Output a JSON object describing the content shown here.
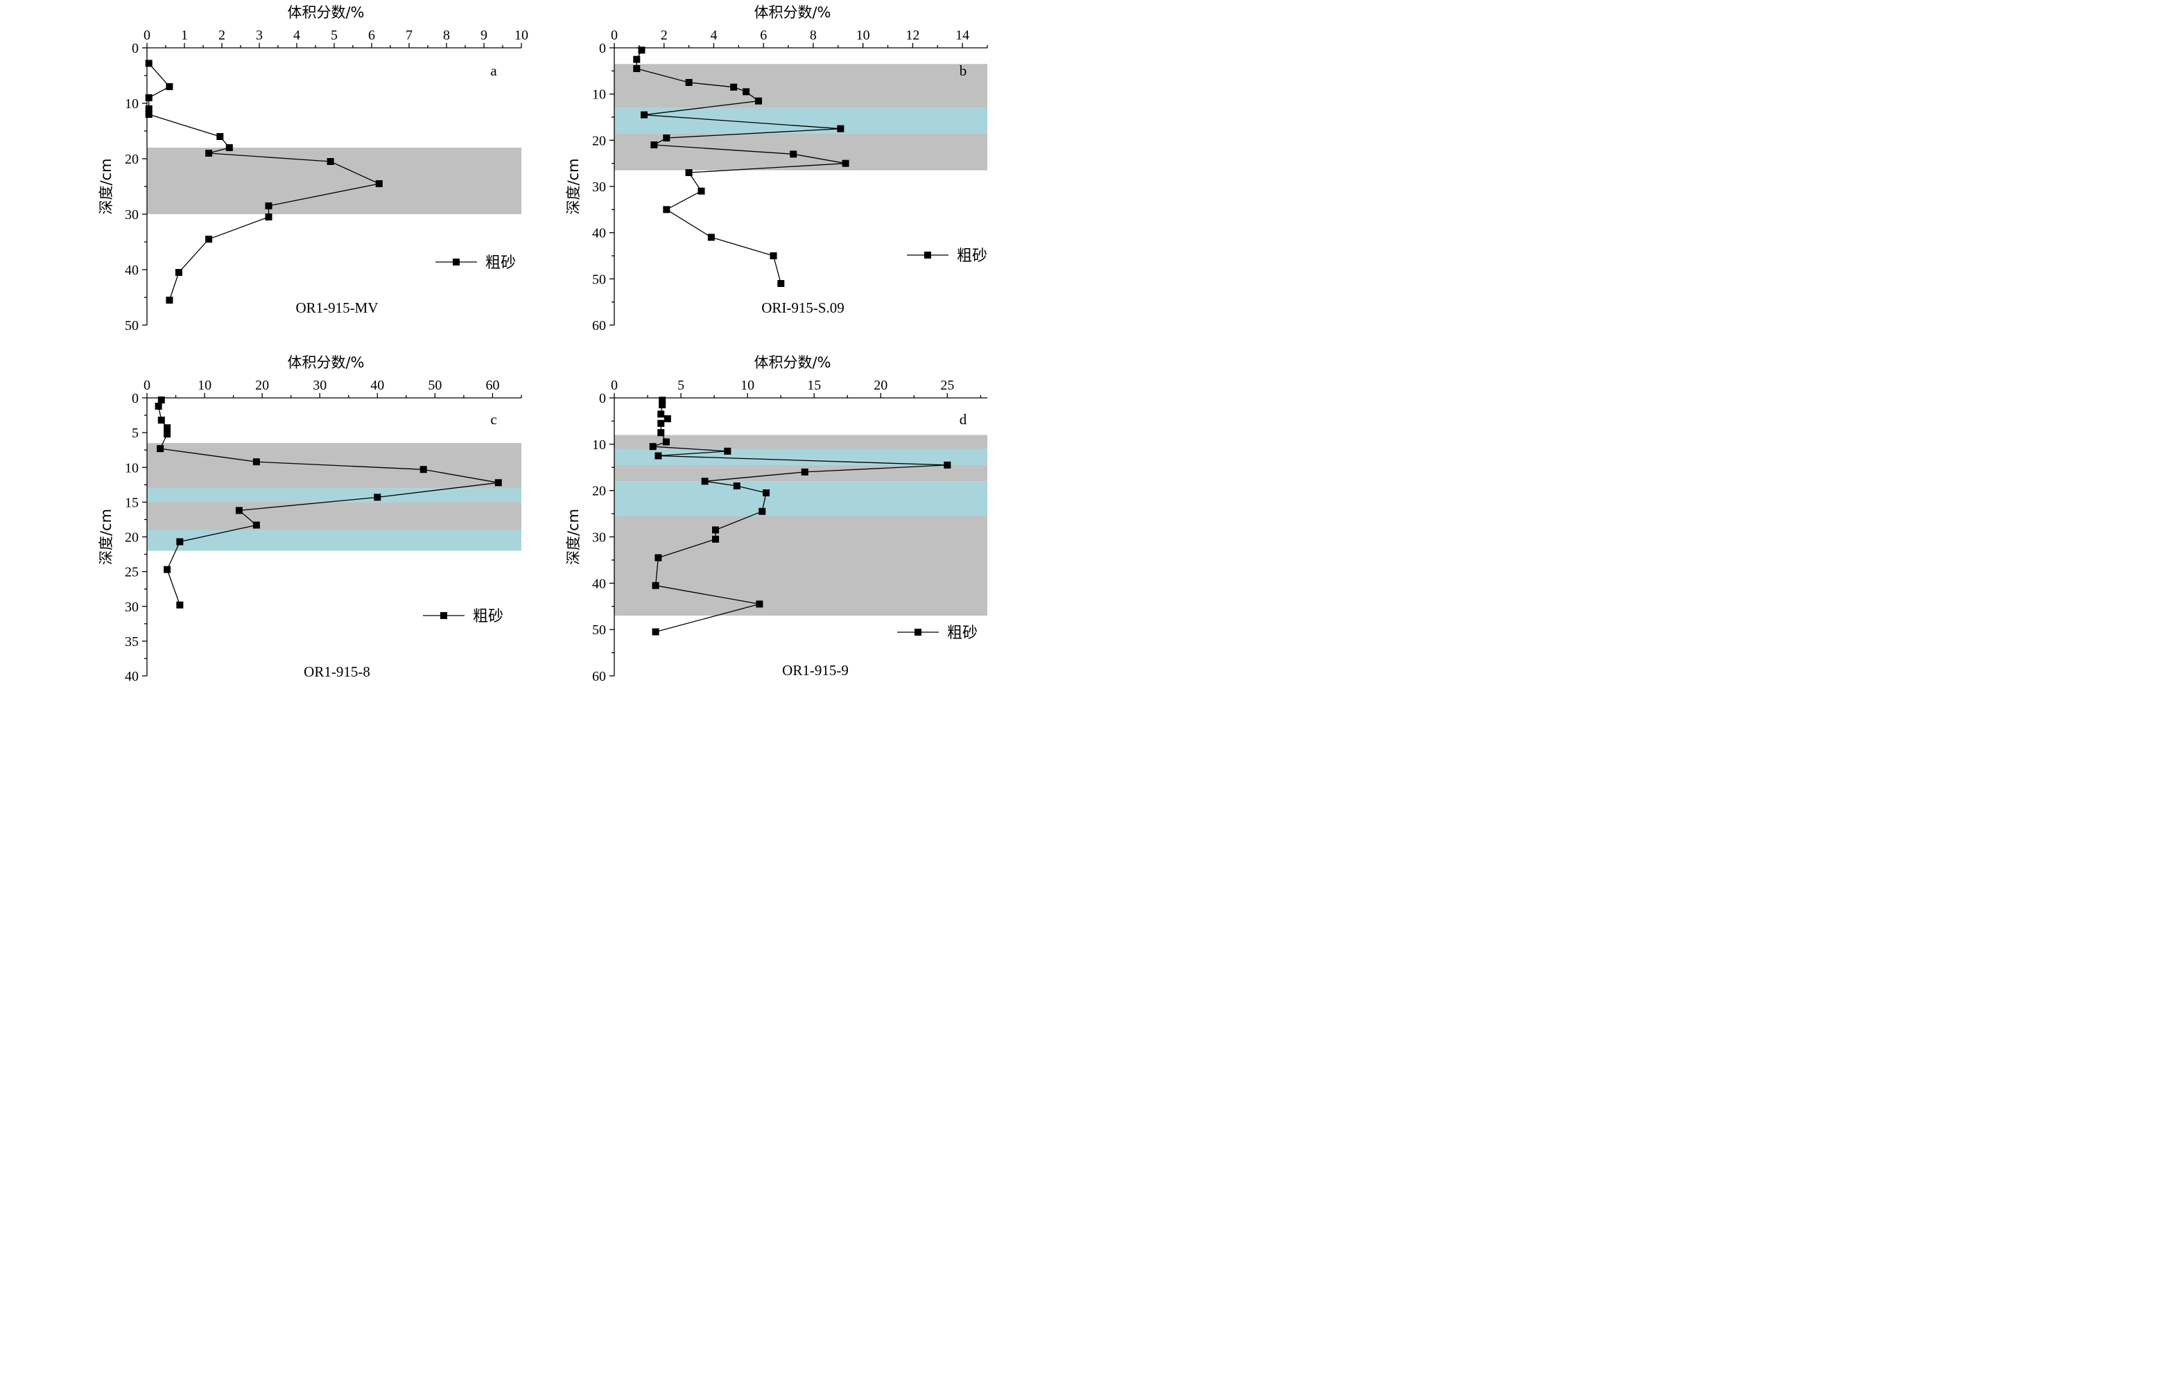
{
  "chart_data": [
    {
      "type": "line",
      "panel_label": "a",
      "name": "OR1-915-MV",
      "xlabel": "体积分数/%",
      "ylabel": "深度/cm",
      "xlim": [
        0,
        10
      ],
      "xticks": [
        0,
        1,
        2,
        3,
        4,
        5,
        6,
        7,
        8,
        9,
        10
      ],
      "ylim": [
        0,
        50
      ],
      "yticks": [
        0,
        10,
        20,
        30,
        40,
        50
      ],
      "y_inverted": true,
      "legend": "粗砂",
      "legend_position": "right",
      "bands": [
        {
          "from": 18,
          "to": 30,
          "color": "#c0c0c0"
        }
      ],
      "series": [
        {
          "name": "粗砂",
          "marker": "square",
          "x": [
            0.05,
            0.6,
            0.05,
            0.05,
            0.05,
            1.95,
            2.2,
            1.65,
            4.9,
            6.2,
            3.25,
            3.25,
            1.65,
            0.85,
            0.6
          ],
          "y": [
            2.8,
            7.0,
            9.0,
            11.0,
            12.0,
            16.0,
            18.0,
            19.0,
            20.5,
            24.5,
            28.5,
            30.5,
            34.5,
            40.5,
            45.5
          ]
        }
      ]
    },
    {
      "type": "line",
      "panel_label": "b",
      "name": "ORI-915-S.09",
      "xlabel": "体积分数/%",
      "ylabel": "深度/cm",
      "xlim": [
        0,
        15
      ],
      "xticks": [
        0,
        2,
        4,
        6,
        8,
        10,
        12,
        14
      ],
      "ylim": [
        0,
        60
      ],
      "yticks": [
        0,
        10,
        20,
        30,
        40,
        50,
        60
      ],
      "y_inverted": true,
      "legend": "粗砂",
      "legend_position": "right",
      "bands": [
        {
          "from": 3.5,
          "to": 13,
          "color": "#c0c0c0"
        },
        {
          "from": 13,
          "to": 18.5,
          "color": "#a8d5db"
        },
        {
          "from": 18.5,
          "to": 26.5,
          "color": "#c0c0c0"
        }
      ],
      "series": [
        {
          "name": "粗砂",
          "marker": "square",
          "x": [
            1.1,
            0.9,
            0.9,
            3.0,
            4.8,
            5.3,
            5.8,
            1.2,
            9.1,
            2.1,
            1.6,
            7.2,
            9.3,
            3.0,
            3.5,
            2.1,
            3.9,
            6.4,
            6.7
          ],
          "y": [
            0.5,
            2.5,
            4.5,
            7.5,
            8.5,
            9.5,
            11.5,
            14.5,
            17.5,
            19.5,
            21.0,
            23.0,
            25.0,
            27.0,
            31.0,
            35.0,
            41.0,
            45.0,
            51.0
          ]
        }
      ]
    },
    {
      "type": "line",
      "panel_label": "c",
      "name": "OR1-915-8",
      "xlabel": "体积分数/%",
      "ylabel": "深度/cm",
      "xlim": [
        0,
        65
      ],
      "xticks": [
        0,
        10,
        20,
        30,
        40,
        50,
        60
      ],
      "ylim": [
        0,
        40
      ],
      "yticks": [
        0,
        5,
        10,
        15,
        20,
        25,
        30,
        35,
        40
      ],
      "y_inverted": true,
      "legend": "粗砂",
      "legend_position": "right",
      "bands": [
        {
          "from": 6.5,
          "to": 13,
          "color": "#c0c0c0"
        },
        {
          "from": 13,
          "to": 15,
          "color": "#a8d5db"
        },
        {
          "from": 15,
          "to": 19,
          "color": "#c0c0c0"
        },
        {
          "from": 19,
          "to": 22,
          "color": "#a8d5db"
        }
      ],
      "series": [
        {
          "name": "粗砂",
          "marker": "square",
          "x": [
            2.5,
            2.0,
            2.5,
            3.5,
            3.5,
            2.3,
            19.0,
            48.0,
            61.0,
            40.0,
            16.0,
            19.0,
            5.7,
            3.5,
            5.7
          ],
          "y": [
            0.3,
            1.2,
            3.2,
            4.3,
            5.2,
            7.3,
            9.2,
            10.3,
            12.2,
            14.3,
            16.2,
            18.3,
            20.7,
            24.7,
            29.8
          ]
        }
      ]
    },
    {
      "type": "line",
      "panel_label": "d",
      "name": "OR1-915-9",
      "xlabel": "体积分数/%",
      "ylabel": "深度/cm",
      "xlim": [
        0,
        28
      ],
      "xticks": [
        0,
        5,
        10,
        15,
        20,
        25
      ],
      "ylim": [
        0,
        60
      ],
      "yticks": [
        0,
        10,
        20,
        30,
        40,
        50,
        60
      ],
      "y_inverted": true,
      "legend": "粗砂",
      "legend_position": "bottom-right",
      "bands": [
        {
          "from": 8,
          "to": 11,
          "color": "#c0c0c0"
        },
        {
          "from": 11,
          "to": 14.5,
          "color": "#a8d5db"
        },
        {
          "from": 14.5,
          "to": 18,
          "color": "#c0c0c0"
        },
        {
          "from": 18,
          "to": 25.5,
          "color": "#a8d5db"
        },
        {
          "from": 25.5,
          "to": 47,
          "color": "#c0c0c0"
        }
      ],
      "series": [
        {
          "name": "粗砂",
          "marker": "square",
          "x": [
            3.6,
            3.6,
            3.5,
            4.0,
            3.5,
            3.5,
            3.9,
            2.9,
            8.5,
            3.3,
            25.0,
            14.3,
            6.8,
            9.2,
            11.4,
            11.1,
            7.6,
            7.6,
            3.3,
            3.1,
            10.9,
            3.1
          ],
          "y": [
            0.5,
            1.5,
            3.5,
            4.5,
            5.5,
            7.5,
            9.5,
            10.5,
            11.5,
            12.5,
            14.5,
            16.0,
            18.0,
            19.0,
            20.5,
            24.5,
            28.5,
            30.5,
            34.5,
            40.5,
            44.5,
            50.5
          ]
        }
      ]
    }
  ]
}
